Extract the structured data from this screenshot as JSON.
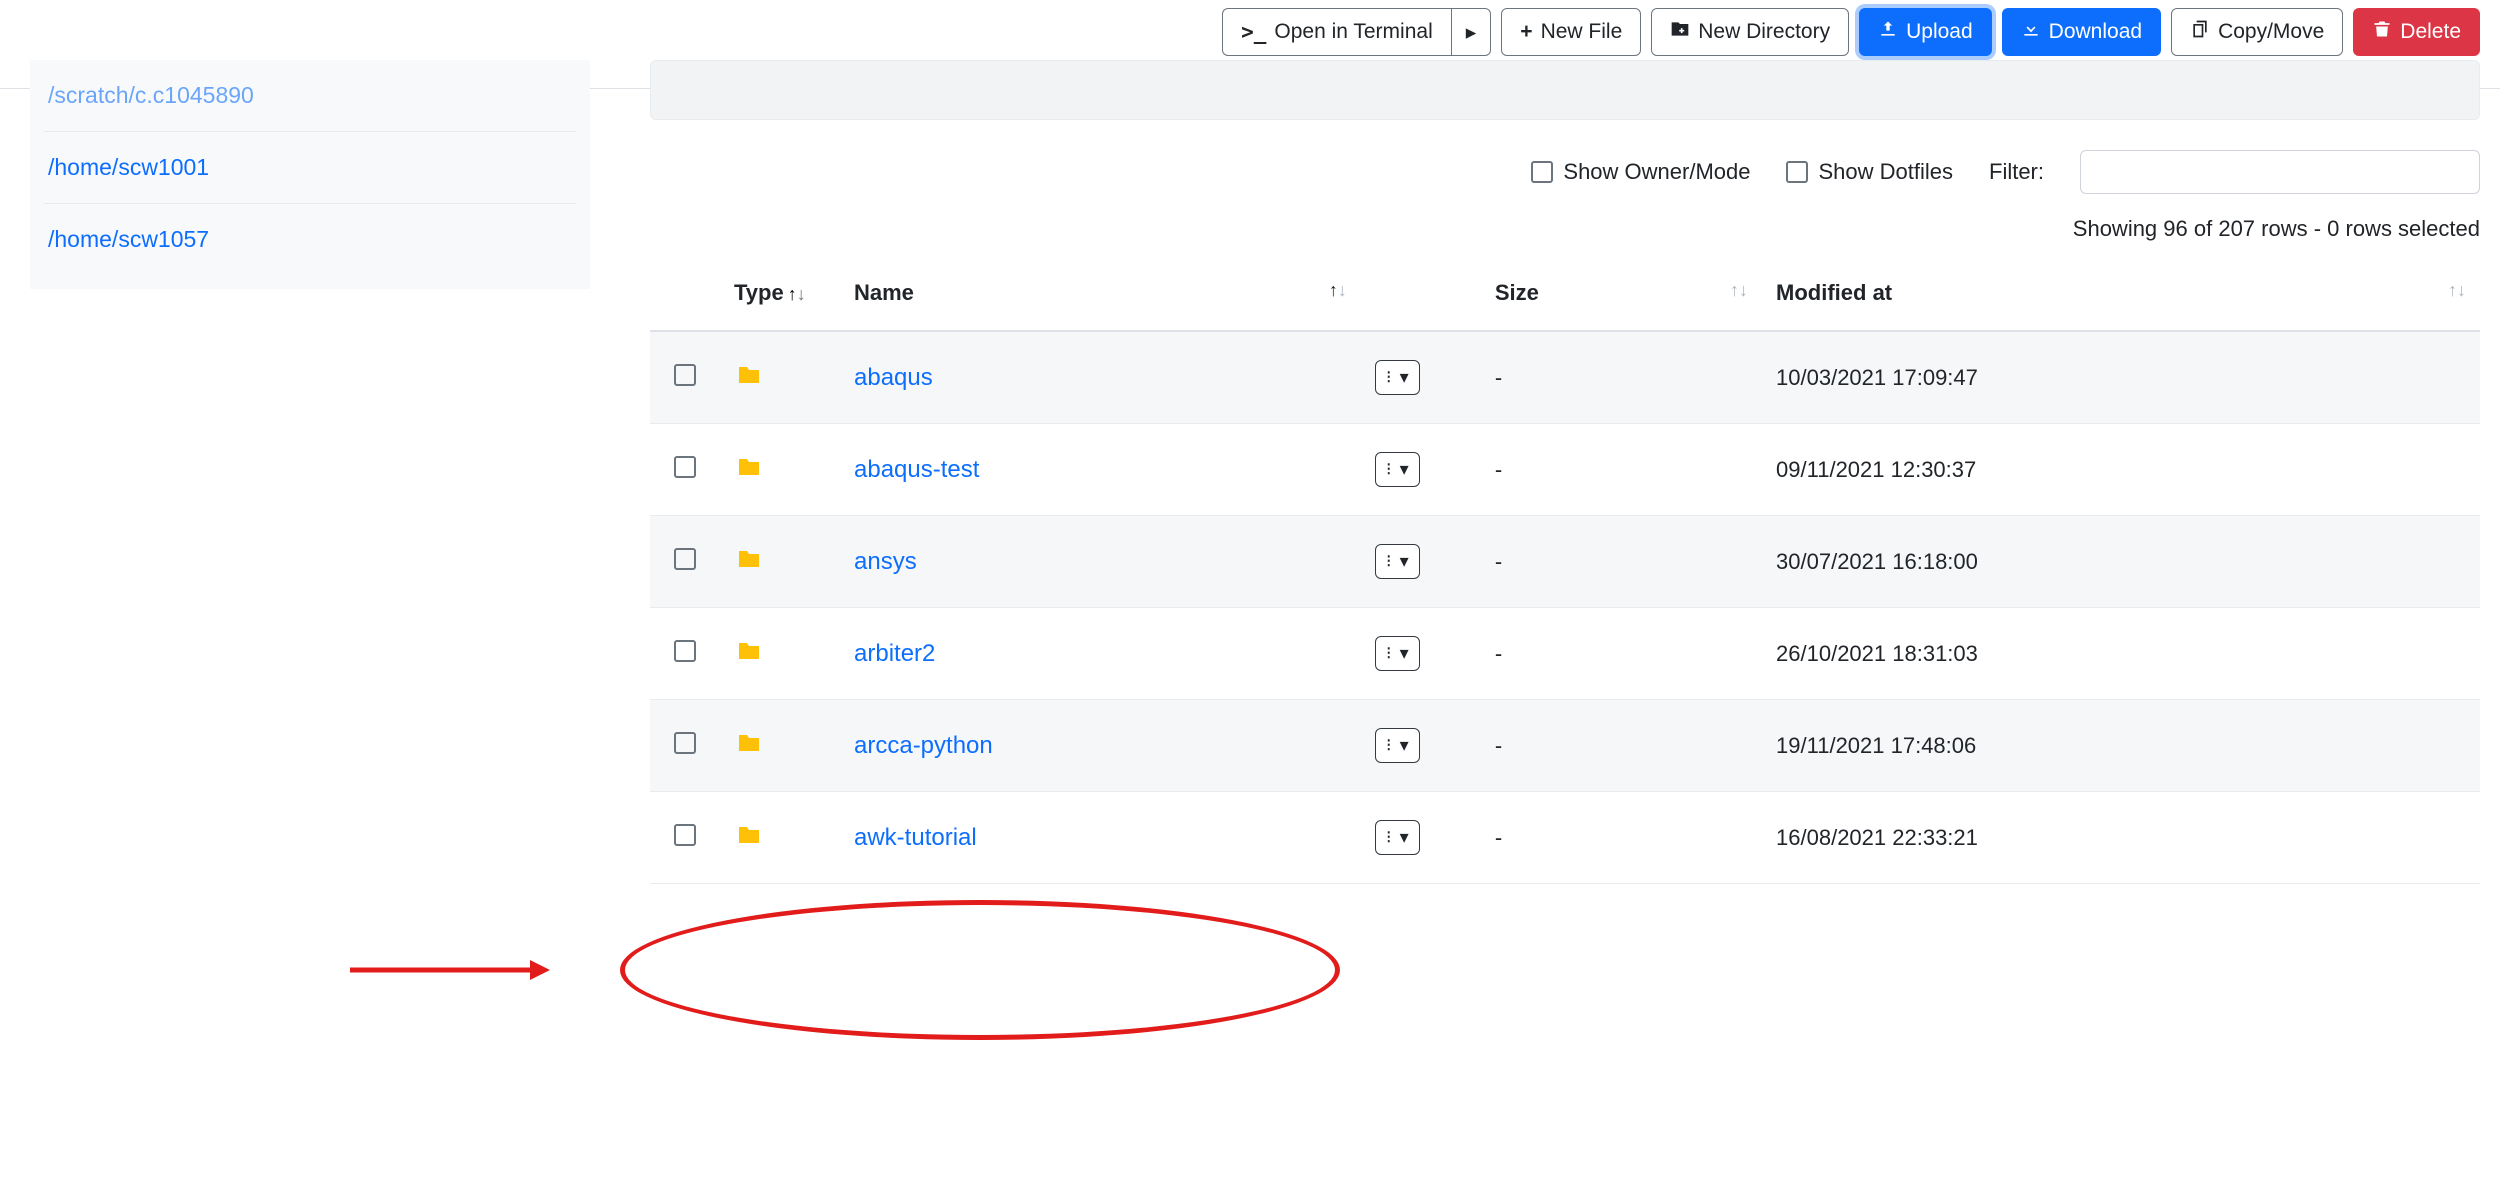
{
  "toolbar": {
    "open_terminal": "Open in Terminal",
    "terminal_dropdown_glyph": "▸",
    "new_file": "New File",
    "new_dir": "New Directory",
    "upload": "Upload",
    "download": "Download",
    "copy_move": "Copy/Move",
    "delete": "Delete"
  },
  "sidebar": {
    "items": [
      "/scratch/c.c1045890",
      "/home/scw1001",
      "/home/scw1057"
    ]
  },
  "controls": {
    "show_owner_mode": "Show Owner/Mode",
    "show_dotfiles": "Show Dotfiles",
    "filter_label": "Filter:",
    "filter_value": ""
  },
  "status": "Showing 96 of 207 rows - 0 rows selected",
  "columns": {
    "type": "Type",
    "name": "Name",
    "size": "Size",
    "modified": "Modified at"
  },
  "rows": [
    {
      "name": "abaqus",
      "size": "-",
      "modified": "10/03/2021 17:09:47"
    },
    {
      "name": "abaqus-test",
      "size": "-",
      "modified": "09/11/2021 12:30:37"
    },
    {
      "name": "ansys",
      "size": "-",
      "modified": "30/07/2021 16:18:00"
    },
    {
      "name": "arbiter2",
      "size": "-",
      "modified": "26/10/2021 18:31:03"
    },
    {
      "name": "arcca-python",
      "size": "-",
      "modified": "19/11/2021 17:48:06"
    },
    {
      "name": "awk-tutorial",
      "size": "-",
      "modified": "16/08/2021 22:33:21"
    }
  ],
  "annotation": {
    "highlight_row_index": 4,
    "ellipse_color": "#e21b1b",
    "arrow_color": "#e21b1b"
  },
  "colors": {
    "link": "#0d6efd",
    "primary": "#0d6efd",
    "danger": "#dc3545",
    "folder": "#ffc107",
    "border": "#dee2e6",
    "muted": "#6c757d"
  }
}
